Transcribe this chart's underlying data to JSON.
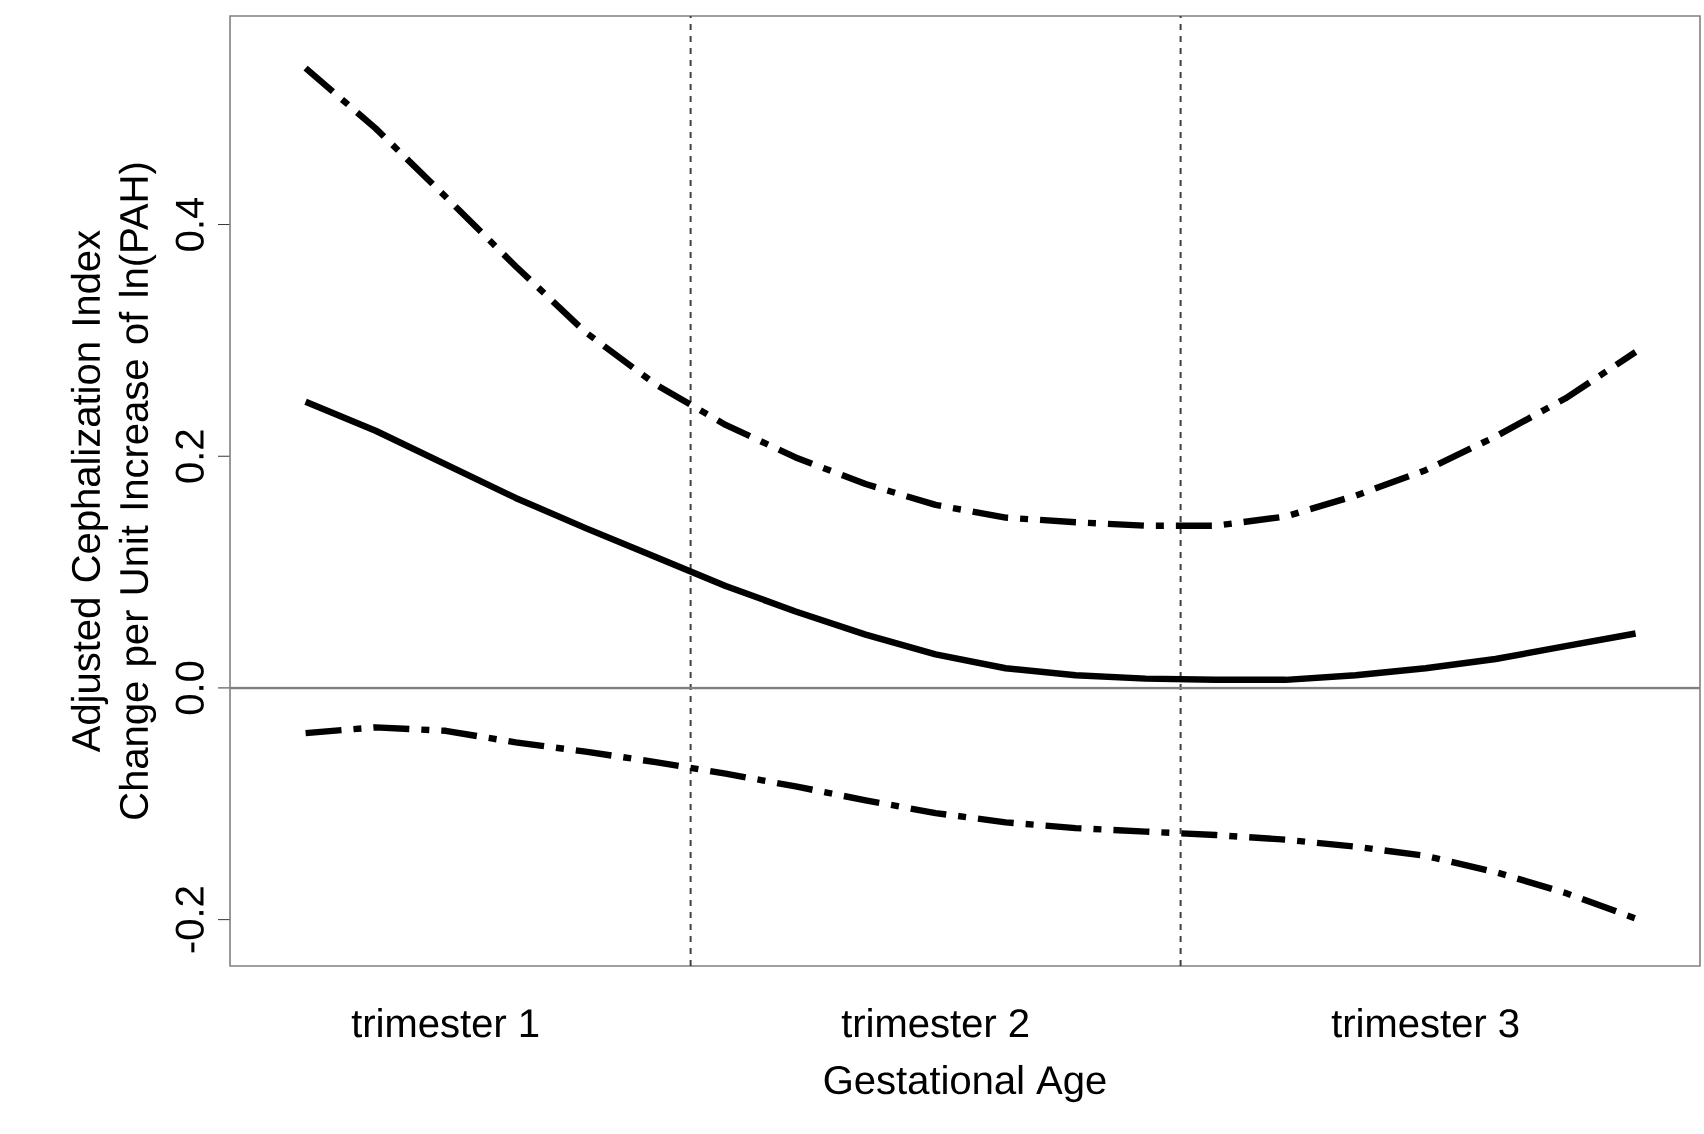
{
  "chart_data": {
    "type": "line",
    "xlabel": "Gestational Age",
    "ylabel": "Adjusted Cephalization Index Change per Unit Increase of ln(PAH)",
    "categories": [
      null,
      null,
      "trimester 1",
      null,
      null,
      null,
      null,
      null,
      null,
      "trimester 2",
      null,
      null,
      null,
      null,
      null,
      null,
      "trimester 3",
      null,
      null,
      null
    ],
    "series": [
      {
        "color": "#000000",
        "line_style": "solid",
        "values": [
          0.247,
          0.222,
          0.193,
          0.164,
          0.138,
          0.113,
          0.088,
          0.066,
          0.046,
          0.029,
          0.017,
          0.011,
          0.008,
          0.007,
          0.007,
          0.011,
          0.017,
          0.025,
          0.036,
          0.047
        ]
      },
      {
        "color": "#000000",
        "line_style": "dashed",
        "values": [
          0.535,
          0.483,
          0.424,
          0.364,
          0.307,
          0.262,
          0.227,
          0.199,
          0.176,
          0.158,
          0.147,
          0.143,
          0.14,
          0.14,
          0.148,
          0.166,
          0.188,
          0.217,
          0.25,
          0.29
        ]
      },
      {
        "color": "#000000",
        "line_style": "dashed",
        "values": [
          -0.039,
          -0.034,
          -0.037,
          -0.047,
          -0.055,
          -0.064,
          -0.074,
          -0.085,
          -0.097,
          -0.108,
          -0.116,
          -0.121,
          -0.124,
          -0.127,
          -0.131,
          -0.137,
          -0.145,
          -0.159,
          -0.177,
          -0.199
        ]
      }
    ],
    "ylim": [
      -0.24,
      0.58
    ],
    "yticks": [
      -0.2,
      {
        "value": 0,
        "label": "0.0"
      },
      0.2,
      0.4
    ],
    "ref_lines": [
      {
        "axis": "y",
        "value": 0,
        "color": "#808080",
        "line_style": "solid"
      }
    ],
    "grid": false,
    "marker": "none"
  }
}
